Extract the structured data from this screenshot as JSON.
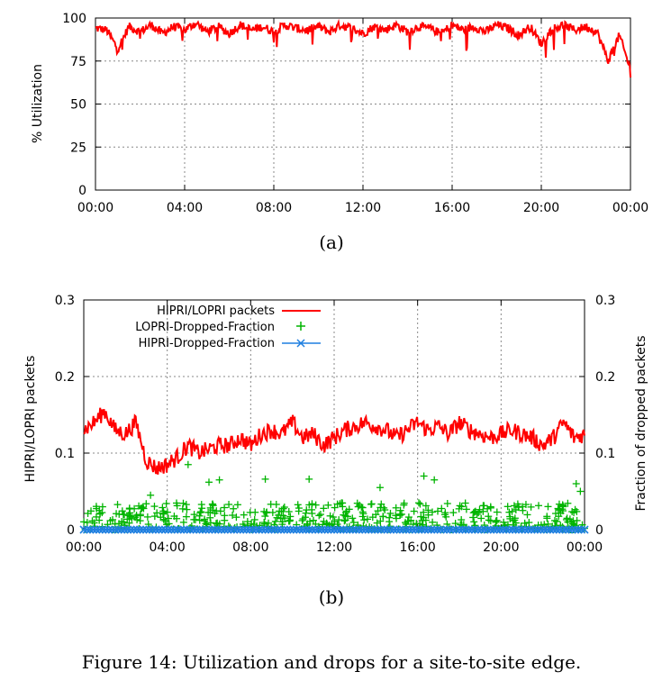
{
  "chart_data": [
    {
      "type": "line",
      "subplot_label": "(a)",
      "ylabel": "% Utilization",
      "xlabel": "",
      "x_ticks": [
        "00:00",
        "04:00",
        "08:00",
        "12:00",
        "16:00",
        "20:00",
        "00:00"
      ],
      "y_ticks": [
        0,
        25,
        50,
        75,
        100
      ],
      "ylim": [
        0,
        100
      ],
      "grid": true,
      "series": [
        {
          "color": "#ff0000",
          "x_hours": [
            0,
            0.5,
            1,
            1.5,
            2,
            2.5,
            3,
            3.5,
            4,
            4.5,
            5,
            5.5,
            6,
            6.5,
            7,
            7.5,
            8,
            8.5,
            9,
            9.5,
            10,
            10.5,
            11,
            11.5,
            12,
            12.5,
            13,
            13.5,
            14,
            14.5,
            15,
            15.5,
            16,
            16.5,
            17,
            17.5,
            18,
            18.5,
            19,
            19.5,
            20,
            20.5,
            21,
            21.5,
            22,
            22.5,
            23,
            23.5,
            24
          ],
          "values": [
            94,
            93,
            82,
            95,
            92,
            96,
            91,
            95,
            93,
            97,
            92,
            95,
            91,
            96,
            93,
            95,
            92,
            96,
            94,
            93,
            95,
            92,
            96,
            94,
            91,
            95,
            93,
            96,
            92,
            95,
            94,
            91,
            96,
            93,
            95,
            92,
            96,
            94,
            90,
            95,
            85,
            94,
            96,
            93,
            95,
            92,
            75,
            90,
            70
          ]
        }
      ]
    },
    {
      "type": "line",
      "subplot_label": "(b)",
      "ylabel": "HIPRI/LOPRI packets",
      "y2label": "Fraction of dropped packets",
      "xlabel": "",
      "x_ticks": [
        "00:00",
        "04:00",
        "08:00",
        "12:00",
        "16:00",
        "20:00",
        "00:00"
      ],
      "y_ticks": [
        0,
        0.1,
        0.2,
        0.3
      ],
      "y_tick_labels": [
        "0",
        "0.1",
        "0.2",
        "0.3"
      ],
      "ylim": [
        0,
        0.3
      ],
      "y2lim": [
        0,
        0.3
      ],
      "grid": true,
      "legend_placement": "top-left",
      "series": [
        {
          "name": "HIPRI/LOPRI packets",
          "color": "#ff0000",
          "x_hours": [
            0,
            0.5,
            1,
            1.5,
            2,
            2.5,
            3,
            3.5,
            4,
            4.5,
            5,
            5.5,
            6,
            6.5,
            7,
            7.5,
            8,
            8.5,
            9,
            9.5,
            10,
            10.5,
            11,
            11.5,
            12,
            12.5,
            13,
            13.5,
            14,
            14.5,
            15,
            15.5,
            16,
            16.5,
            17,
            17.5,
            18,
            18.5,
            19,
            19.5,
            20,
            20.5,
            21,
            21.5,
            22,
            22.5,
            23,
            23.5,
            24
          ],
          "values": [
            0.13,
            0.14,
            0.155,
            0.13,
            0.125,
            0.14,
            0.09,
            0.08,
            0.085,
            0.095,
            0.11,
            0.1,
            0.105,
            0.11,
            0.11,
            0.12,
            0.11,
            0.125,
            0.13,
            0.125,
            0.14,
            0.12,
            0.125,
            0.11,
            0.12,
            0.13,
            0.135,
            0.14,
            0.135,
            0.13,
            0.12,
            0.13,
            0.14,
            0.13,
            0.135,
            0.125,
            0.14,
            0.13,
            0.125,
            0.12,
            0.125,
            0.13,
            0.125,
            0.12,
            0.11,
            0.12,
            0.14,
            0.12,
            0.125
          ]
        },
        {
          "name": "LOPRI-Dropped-Fraction",
          "color": "#00b400",
          "marker": "+",
          "typical_range": [
            0,
            0.035
          ],
          "outliers": [
            {
              "x": 5.0,
              "y": 0.085
            },
            {
              "x": 6.0,
              "y": 0.062
            },
            {
              "x": 6.5,
              "y": 0.065
            },
            {
              "x": 8.7,
              "y": 0.066
            },
            {
              "x": 10.8,
              "y": 0.066
            },
            {
              "x": 16.3,
              "y": 0.07
            },
            {
              "x": 16.8,
              "y": 0.065
            },
            {
              "x": 23.6,
              "y": 0.06
            },
            {
              "x": 23.8,
              "y": 0.05
            },
            {
              "x": 3.2,
              "y": 0.045
            },
            {
              "x": 14.2,
              "y": 0.055
            }
          ]
        },
        {
          "name": "HIPRI-Dropped-Fraction",
          "color": "#1f7fe0",
          "marker": "x",
          "constant_value": 0
        }
      ]
    }
  ],
  "caption": "Figure 14: Utilization and drops for a site-to-site edge."
}
